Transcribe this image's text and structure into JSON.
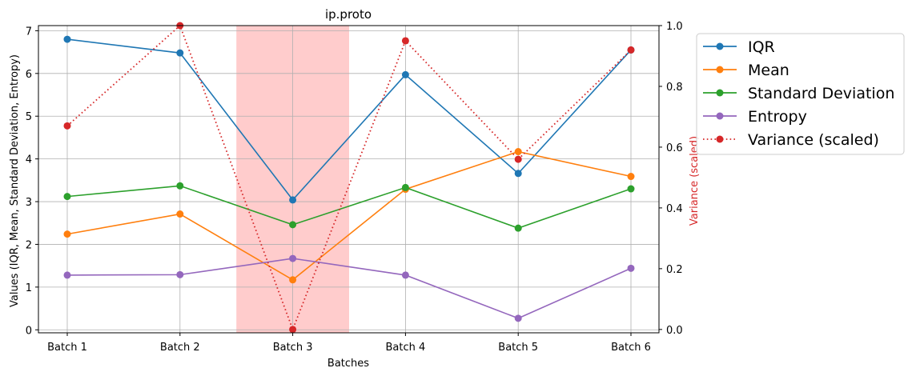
{
  "chart_data": {
    "type": "line",
    "title": "ip.proto",
    "xlabel": "Batches",
    "ylabel": "Values (IQR, Mean, Standard Deviation, Entropy)",
    "ylabel_right": "Variance (scaled)",
    "categories": [
      "Batch 1",
      "Batch 2",
      "Batch 3",
      "Batch 4",
      "Batch 5",
      "Batch 6"
    ],
    "ylim": [
      -0.07,
      7.12
    ],
    "y_ticks": [
      0,
      1,
      2,
      3,
      4,
      5,
      6,
      7
    ],
    "ylim_right": [
      -0.011,
      1.0
    ],
    "y_ticks_right": [
      "0.0",
      "0.2",
      "0.4",
      "0.6",
      "0.8",
      "1.0"
    ],
    "grid": true,
    "legend_placement": "upper-right-outside",
    "highlight_band": {
      "from": "Batch 3",
      "to": "Batch 3",
      "color": "#ff9999"
    },
    "series": [
      {
        "name": "IQR",
        "color": "#1f77b4",
        "style": "solid",
        "axis": "left",
        "values": [
          6.8,
          6.48,
          3.04,
          5.97,
          3.66,
          6.55
        ]
      },
      {
        "name": "Mean",
        "color": "#ff7f0e",
        "style": "solid",
        "axis": "left",
        "values": [
          2.24,
          2.71,
          1.17,
          3.29,
          4.17,
          3.59
        ]
      },
      {
        "name": "Standard Deviation",
        "color": "#2ca02c",
        "style": "solid",
        "axis": "left",
        "values": [
          3.12,
          3.37,
          2.46,
          3.33,
          2.38,
          3.3
        ]
      },
      {
        "name": "Entropy",
        "color": "#9467bd",
        "style": "solid",
        "axis": "left",
        "values": [
          1.28,
          1.29,
          1.67,
          1.28,
          0.27,
          1.44
        ]
      },
      {
        "name": "Variance (scaled)",
        "color": "#d62728",
        "style": "dotted",
        "axis": "right",
        "values": [
          0.67,
          1.0,
          0.0,
          0.95,
          0.56,
          0.92
        ]
      }
    ]
  }
}
